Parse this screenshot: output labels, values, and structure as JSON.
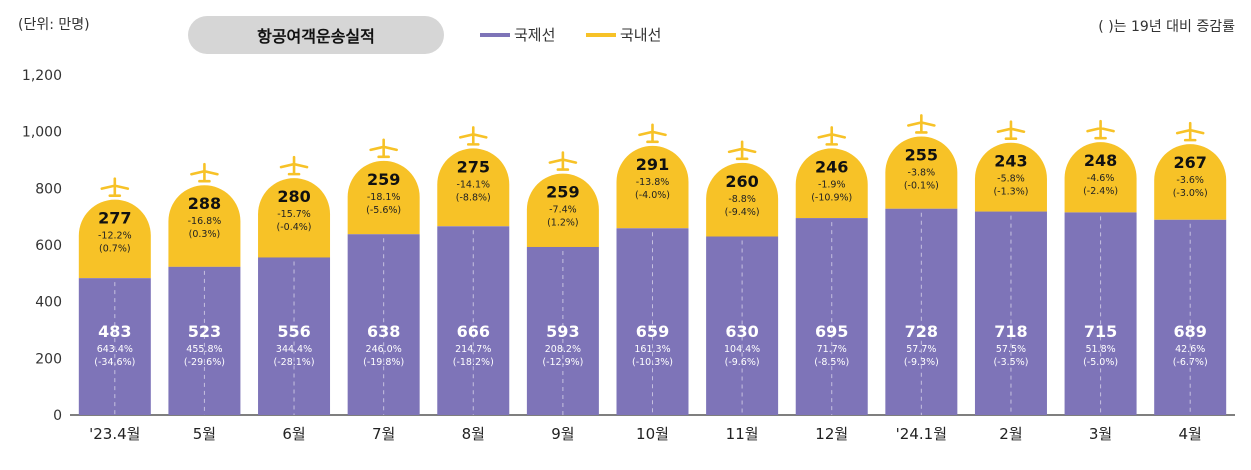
{
  "unit_label": "(단위: 만명)",
  "note": "( )는 19년 대비 증감률",
  "colors": {
    "international": "#7e74b8",
    "domestic": "#f7c227",
    "plane": "#f7c227",
    "axis": "#555555"
  },
  "chart_data": {
    "type": "bar",
    "stacked": true,
    "title": "항공여객운송실적",
    "ylim": [
      0,
      1200
    ],
    "yticks": [
      "0",
      "200",
      "400",
      "600",
      "800",
      "1,000",
      "1,200"
    ],
    "legend": [
      {
        "name": "국제선",
        "color": "#7e74b8"
      },
      {
        "name": "국내선",
        "color": "#f7c227"
      }
    ],
    "categories": [
      "'23.4월",
      "5월",
      "6월",
      "7월",
      "8월",
      "9월",
      "10월",
      "11월",
      "12월",
      "'24.1월",
      "2월",
      "3월",
      "4월"
    ],
    "series": [
      {
        "name": "국제선",
        "values": [
          483,
          523,
          556,
          638,
          666,
          593,
          659,
          630,
          695,
          728,
          718,
          715,
          689
        ],
        "labels": [
          "483",
          "523",
          "556",
          "638",
          "666",
          "593",
          "659",
          "630",
          "695",
          "728",
          "718",
          "715",
          "689"
        ],
        "rate1": [
          "643.4%",
          "455.8%",
          "344.4%",
          "246.0%",
          "214.7%",
          "208.2%",
          "161.3%",
          "104.4%",
          "71.7%",
          "57.7%",
          "57.5%",
          "51.8%",
          "42.6%"
        ],
        "rate2": [
          "(-34.6%)",
          "(-29.6%)",
          "(-28.1%)",
          "(-19.8%)",
          "(-18.2%)",
          "(-12.9%)",
          "(-10.3%)",
          "(-9.6%)",
          "(-8.5%)",
          "(-9.3%)",
          "(-3.5%)",
          "(-5.0%)",
          "(-6.7%)"
        ]
      },
      {
        "name": "국내선",
        "values": [
          277,
          288,
          280,
          259,
          275,
          259,
          291,
          260,
          246,
          255,
          243,
          248,
          267
        ],
        "labels": [
          "277",
          "288",
          "280",
          "259",
          "275",
          "259",
          "291",
          "260",
          "246",
          "255",
          "243",
          "248",
          "267"
        ],
        "rate1": [
          "-12.2%",
          "-16.8%",
          "-15.7%",
          "-18.1%",
          "-14.1%",
          "-7.4%",
          "-13.8%",
          "-8.8%",
          "-1.9%",
          "-3.8%",
          "-5.8%",
          "-4.6%",
          "-3.6%"
        ],
        "rate2": [
          "(0.7%)",
          "(0.3%)",
          "(-0.4%)",
          "(-5.6%)",
          "(-8.8%)",
          "(1.2%)",
          "(-4.0%)",
          "(-9.4%)",
          "(-10.9%)",
          "(-0.1%)",
          "(-1.3%)",
          "(-2.4%)",
          "(-3.0%)"
        ]
      }
    ]
  }
}
